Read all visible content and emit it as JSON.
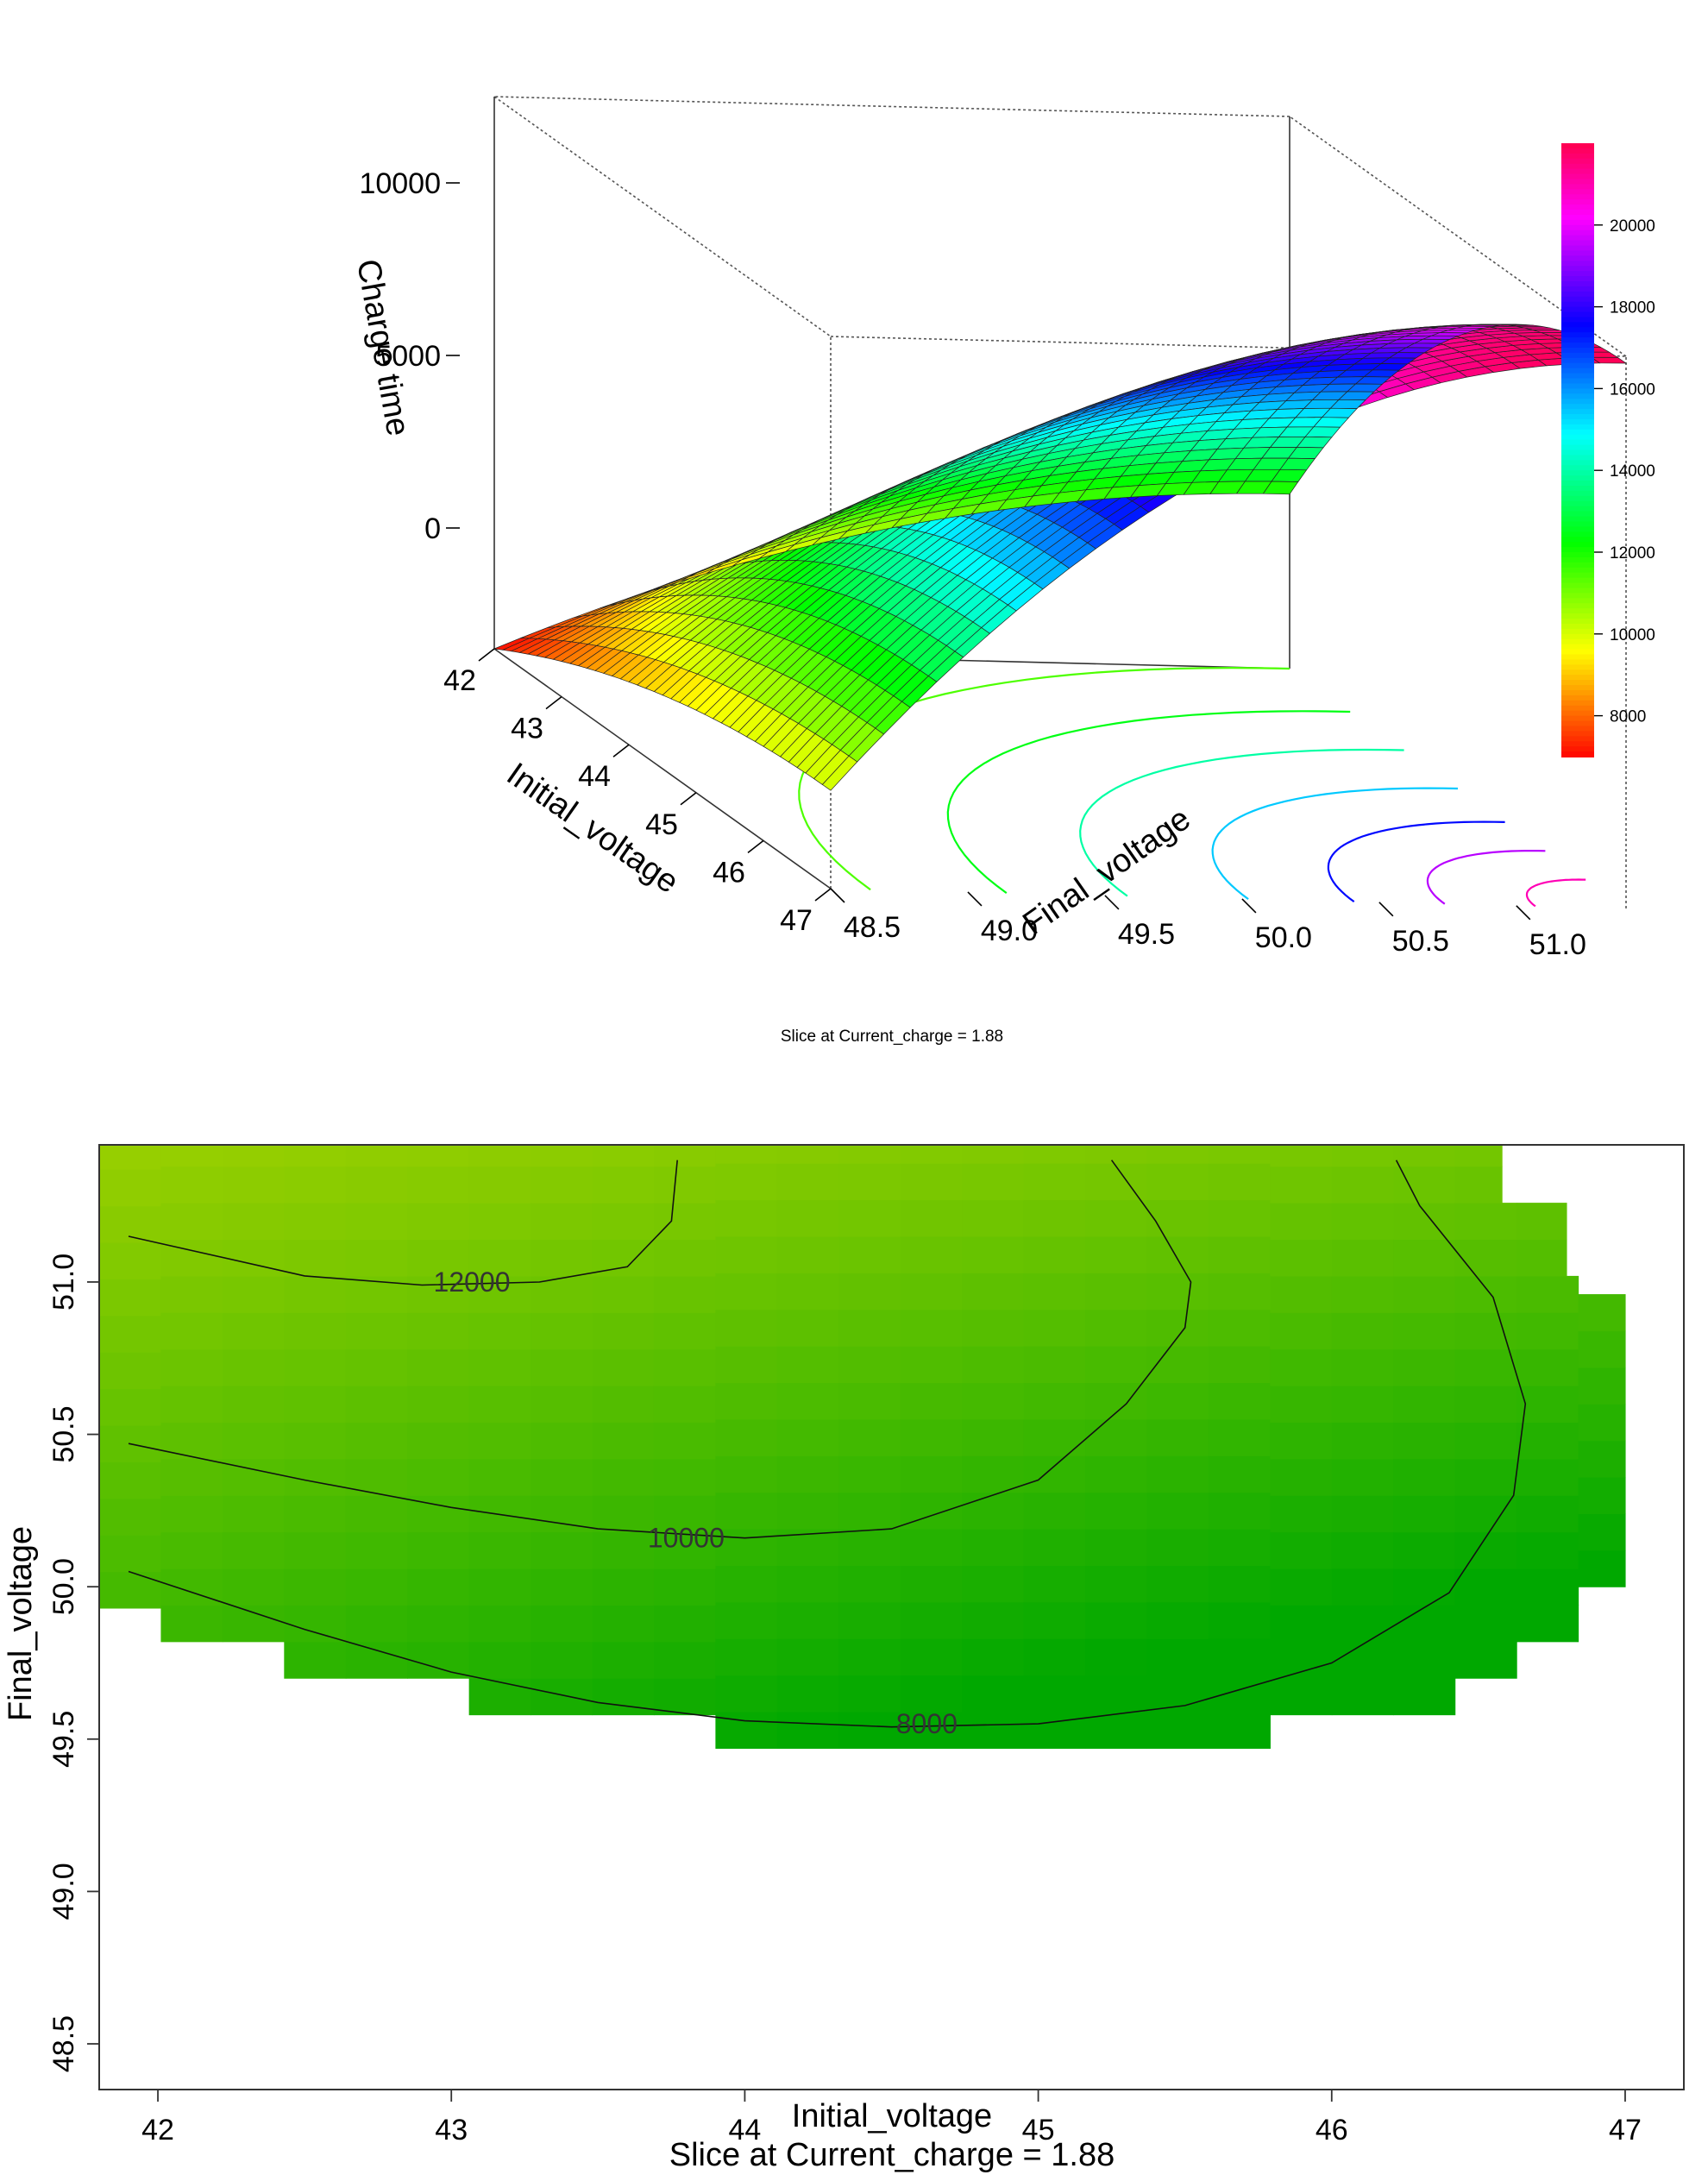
{
  "chart_data": [
    {
      "type": "surface",
      "zlabel": "Charge time",
      "xlabel": "Initial_voltage",
      "ylabel": "Final_voltage",
      "x_ticks": [
        "42",
        "43",
        "44",
        "45",
        "46",
        "47"
      ],
      "y_ticks": [
        "48.5",
        "49.0",
        "49.5",
        "50.0",
        "50.5",
        "51.0"
      ],
      "z_ticks": [
        "0",
        "5000",
        "10000"
      ],
      "xlim": [
        42,
        47
      ],
      "ylim": [
        48.5,
        51.4
      ],
      "zlim": [
        -3500,
        12500
      ],
      "subtitle": "Slice at Current_charge = 1.88",
      "colorbar": {
        "ticks": [
          "8000",
          "10000",
          "12000",
          "14000",
          "16000",
          "18000",
          "20000"
        ],
        "range": [
          7000,
          22000
        ],
        "palette": "rainbow red-yellow-green-cyan-blue-magenta-red"
      },
      "surface_peak": {
        "initial_voltage": 47,
        "final_voltage": 51.4,
        "charge_time": 12300
      },
      "surface_corner": {
        "initial_voltage": 42,
        "final_voltage": 48.5,
        "charge_time": -3500
      }
    },
    {
      "type": "contour",
      "xlabel": "Initial_voltage",
      "ylabel": "Final_voltage",
      "subtitle": "Slice at Current_charge = 1.88",
      "x_ticks": [
        "42",
        "43",
        "44",
        "45",
        "46",
        "47"
      ],
      "y_ticks": [
        "48.5",
        "49.0",
        "49.5",
        "50.0",
        "50.5",
        "51.0"
      ],
      "xlim": [
        41.8,
        47.2
      ],
      "ylim": [
        48.35,
        51.45
      ],
      "contour_levels": [
        {
          "label": "12000",
          "points": [
            [
              41.9,
              51.15
            ],
            [
              42.5,
              51.02
            ],
            [
              42.9,
              50.99
            ],
            [
              43.3,
              51.0
            ],
            [
              43.6,
              51.05
            ],
            [
              43.75,
              51.2
            ],
            [
              43.77,
              51.4
            ]
          ]
        },
        {
          "label": "10000",
          "points": [
            [
              41.9,
              50.47
            ],
            [
              42.5,
              50.35
            ],
            [
              43.0,
              50.26
            ],
            [
              43.5,
              50.19
            ],
            [
              44.0,
              50.16
            ],
            [
              44.5,
              50.19
            ],
            [
              45.0,
              50.35
            ],
            [
              45.3,
              50.6
            ],
            [
              45.5,
              50.85
            ],
            [
              45.52,
              51.0
            ],
            [
              45.4,
              51.2
            ],
            [
              45.25,
              51.4
            ]
          ]
        },
        {
          "label": "8000",
          "points": [
            [
              41.9,
              50.05
            ],
            [
              42.5,
              49.86
            ],
            [
              43.0,
              49.72
            ],
            [
              43.5,
              49.62
            ],
            [
              44.0,
              49.56
            ],
            [
              44.5,
              49.54
            ],
            [
              45.0,
              49.55
            ],
            [
              45.5,
              49.61
            ],
            [
              46.0,
              49.75
            ],
            [
              46.4,
              49.98
            ],
            [
              46.62,
              50.3
            ],
            [
              46.66,
              50.6
            ],
            [
              46.55,
              50.95
            ],
            [
              46.3,
              51.25
            ],
            [
              46.22,
              51.4
            ]
          ]
        }
      ],
      "fill_colors": {
        "high": "#9bd000",
        "low": "#00a800"
      }
    }
  ]
}
